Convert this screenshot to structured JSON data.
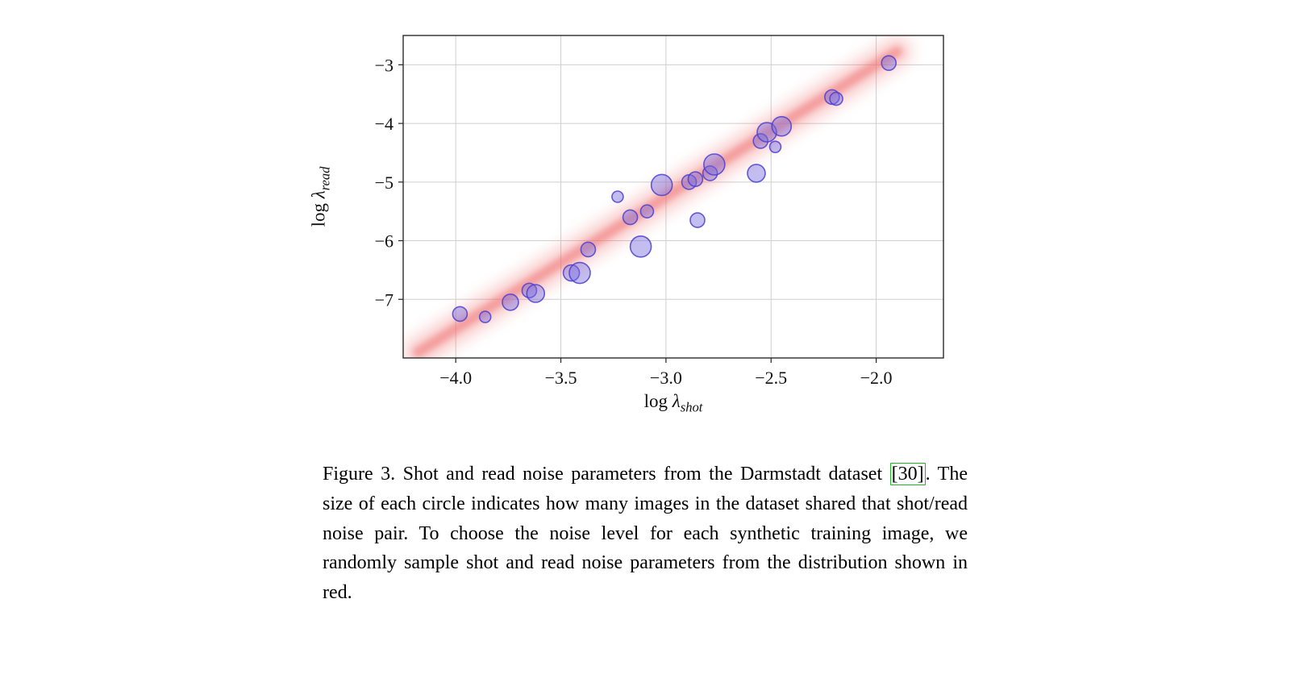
{
  "figure": {
    "caption": {
      "text_before": "Figure 3. Shot and read noise parameters from the Darmstadt dataset ",
      "citation_open": "[",
      "citation_num": "30",
      "citation_close": "]",
      "text_after": ". The size of each circle indicates how many images in the dataset shared that shot/read noise pair. To choose the noise level for each synthetic training image, we randomly sample shot and read noise parameters from the distribution shown in red.",
      "citation_color": "#1fba1f"
    }
  },
  "chart_data": {
    "type": "scatter",
    "title": "",
    "xlabel": {
      "fn": "log ",
      "var": "λ",
      "sub": "shot"
    },
    "ylabel": {
      "fn": "log ",
      "var": "λ",
      "sub": "read"
    },
    "xlim": [
      -4.25,
      -1.68
    ],
    "ylim": [
      -8.0,
      -2.5
    ],
    "xticks": [
      -4.0,
      -3.5,
      -3.0,
      -2.5,
      -2.0
    ],
    "xtick_labels": [
      "−4.0",
      "−3.5",
      "−3.0",
      "−2.5",
      "−2.0"
    ],
    "yticks": [
      -3,
      -4,
      -5,
      -6,
      -7
    ],
    "ytick_labels": [
      "−3",
      "−4",
      "−5",
      "−6",
      "−7"
    ],
    "grid": true,
    "legend": "none",
    "marker_color": "#7b6fe0",
    "marker_edge_color": "#4a3fd0",
    "band": {
      "slope": 2.25,
      "intercept": 1.5,
      "color": "#ef6a6a",
      "x_start": -4.18,
      "x_end": -1.9
    },
    "points": [
      {
        "x": -3.98,
        "y": -7.25,
        "r": 9
      },
      {
        "x": -3.86,
        "y": -7.3,
        "r": 7
      },
      {
        "x": -3.74,
        "y": -7.05,
        "r": 10
      },
      {
        "x": -3.65,
        "y": -6.85,
        "r": 9
      },
      {
        "x": -3.62,
        "y": -6.9,
        "r": 11
      },
      {
        "x": -3.45,
        "y": -6.55,
        "r": 10
      },
      {
        "x": -3.41,
        "y": -6.55,
        "r": 13
      },
      {
        "x": -3.37,
        "y": -6.15,
        "r": 9
      },
      {
        "x": -3.23,
        "y": -5.25,
        "r": 7
      },
      {
        "x": -3.17,
        "y": -5.6,
        "r": 9
      },
      {
        "x": -3.12,
        "y": -6.1,
        "r": 13
      },
      {
        "x": -3.09,
        "y": -5.5,
        "r": 8
      },
      {
        "x": -3.02,
        "y": -5.05,
        "r": 13
      },
      {
        "x": -2.89,
        "y": -5.0,
        "r": 9
      },
      {
        "x": -2.86,
        "y": -4.95,
        "r": 9
      },
      {
        "x": -2.85,
        "y": -5.65,
        "r": 9
      },
      {
        "x": -2.79,
        "y": -4.85,
        "r": 9
      },
      {
        "x": -2.77,
        "y": -4.7,
        "r": 13
      },
      {
        "x": -2.57,
        "y": -4.85,
        "r": 11
      },
      {
        "x": -2.55,
        "y": -4.3,
        "r": 9
      },
      {
        "x": -2.52,
        "y": -4.15,
        "r": 12
      },
      {
        "x": -2.48,
        "y": -4.4,
        "r": 7
      },
      {
        "x": -2.45,
        "y": -4.05,
        "r": 12
      },
      {
        "x": -2.21,
        "y": -3.55,
        "r": 9
      },
      {
        "x": -2.19,
        "y": -3.58,
        "r": 8
      },
      {
        "x": -1.94,
        "y": -2.97,
        "r": 9
      }
    ]
  }
}
